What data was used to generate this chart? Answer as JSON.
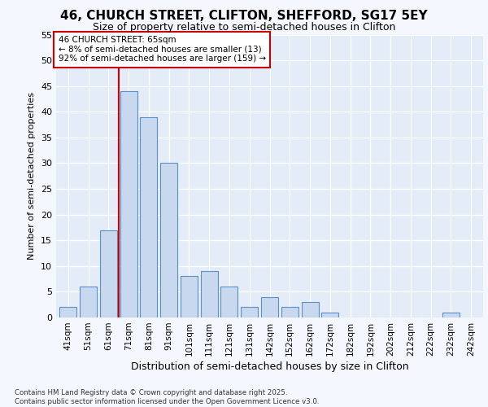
{
  "title1": "46, CHURCH STREET, CLIFTON, SHEFFORD, SG17 5EY",
  "title2": "Size of property relative to semi-detached houses in Clifton",
  "xlabel": "Distribution of semi-detached houses by size in Clifton",
  "ylabel": "Number of semi-detached properties",
  "categories": [
    "41sqm",
    "51sqm",
    "61sqm",
    "71sqm",
    "81sqm",
    "91sqm",
    "101sqm",
    "111sqm",
    "121sqm",
    "131sqm",
    "142sqm",
    "152sqm",
    "162sqm",
    "172sqm",
    "182sqm",
    "192sqm",
    "202sqm",
    "212sqm",
    "222sqm",
    "232sqm",
    "242sqm"
  ],
  "values": [
    2,
    6,
    17,
    44,
    39,
    30,
    8,
    9,
    6,
    2,
    4,
    2,
    3,
    1,
    0,
    0,
    0,
    0,
    0,
    1,
    0
  ],
  "bar_color": "#c8d8ee",
  "bar_edge_color": "#5b8fc7",
  "vline_x_index": 2,
  "vline_color": "#cc0000",
  "annotation_text": "46 CHURCH STREET: 65sqm\n← 8% of semi-detached houses are smaller (13)\n92% of semi-detached houses are larger (159) →",
  "annotation_box_color": "#ffffff",
  "annotation_box_edge": "#cc0000",
  "ylim": [
    0,
    55
  ],
  "yticks": [
    0,
    5,
    10,
    15,
    20,
    25,
    30,
    35,
    40,
    45,
    50,
    55
  ],
  "footer": "Contains HM Land Registry data © Crown copyright and database right 2025.\nContains public sector information licensed under the Open Government Licence v3.0.",
  "fig_bg_color": "#f4f8fe",
  "plot_bg_color": "#e4ecf8",
  "grid_color": "#ffffff",
  "title1_fontsize": 11,
  "title2_fontsize": 9
}
